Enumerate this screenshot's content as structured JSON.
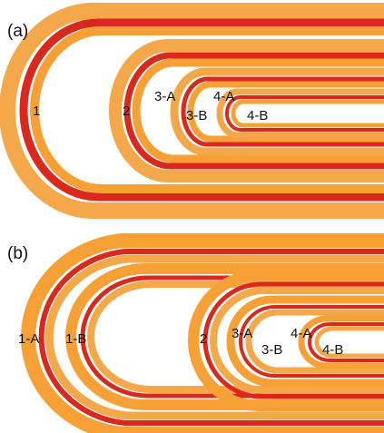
{
  "figure": {
    "panel_a": {
      "label": "(a)",
      "coil_labels": [
        "1",
        "2",
        "3-A",
        "3-B",
        "4-A",
        "4-B"
      ]
    },
    "panel_b": {
      "label": "(b)",
      "coil_labels": [
        "1-A",
        "1-B",
        "2",
        "3-A",
        "3-B",
        "4-A",
        "4-B"
      ]
    },
    "colors": {
      "background": "#ffffff",
      "band_orange": "#f7a036",
      "band_light_orange": "#f4a84a",
      "band_red": "#d9291f",
      "label_text": "#111111"
    }
  }
}
